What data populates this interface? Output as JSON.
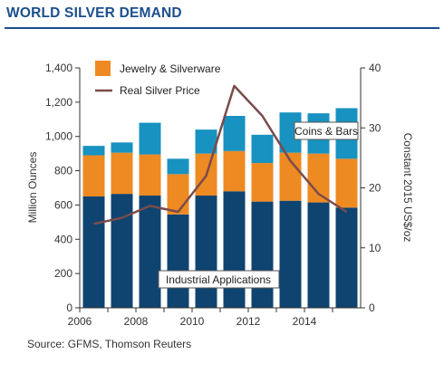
{
  "title": "WORLD SILVER DEMAND",
  "source": "Source: GFMS, Thomson Reuters",
  "colors": {
    "industrial": "#0f4470",
    "jewelry": "#ee8a22",
    "coins": "#1892c0",
    "price": "#7a4b4b",
    "title": "#1b4f8c"
  },
  "chart_data": {
    "type": "bar",
    "stacked": true,
    "categories": [
      "2006",
      "2007",
      "2008",
      "2009",
      "2010",
      "2011",
      "2012",
      "2013",
      "2014",
      "2015"
    ],
    "series": [
      {
        "name": "Industrial Applications",
        "values": [
          650,
          665,
          655,
          545,
          655,
          680,
          620,
          625,
          615,
          585
        ]
      },
      {
        "name": "Jewelry & Silverware",
        "values": [
          240,
          240,
          240,
          235,
          245,
          235,
          225,
          280,
          285,
          285
        ]
      },
      {
        "name": "Coins & Bars",
        "values": [
          55,
          60,
          185,
          90,
          140,
          205,
          165,
          235,
          235,
          295
        ]
      }
    ],
    "line_series": {
      "name": "Real Silver Price",
      "axis": "right",
      "values": [
        14.0,
        15.0,
        17.0,
        16.0,
        22.0,
        37.0,
        32.0,
        24.5,
        19.0,
        16.0
      ]
    },
    "ylabel": "Million Ounces",
    "y2label": "Constant 2015 US$/oz",
    "ylim": [
      0,
      1400
    ],
    "y2lim": [
      0,
      40
    ],
    "yticks": [
      "0",
      "200",
      "400",
      "600",
      "800",
      "1,000",
      "1,200",
      "1,400"
    ],
    "y2ticks": [
      "0",
      "10",
      "20",
      "30",
      "40"
    ],
    "xtick_labels": [
      "2006",
      "2008",
      "2010",
      "2012",
      "2014"
    ],
    "legend": [
      "Jewelry & Silverware",
      "Real Silver Price"
    ],
    "annotations": [
      "Coins & Bars",
      "Industrial Applications"
    ],
    "grid": false,
    "legend_position": "top-left"
  }
}
